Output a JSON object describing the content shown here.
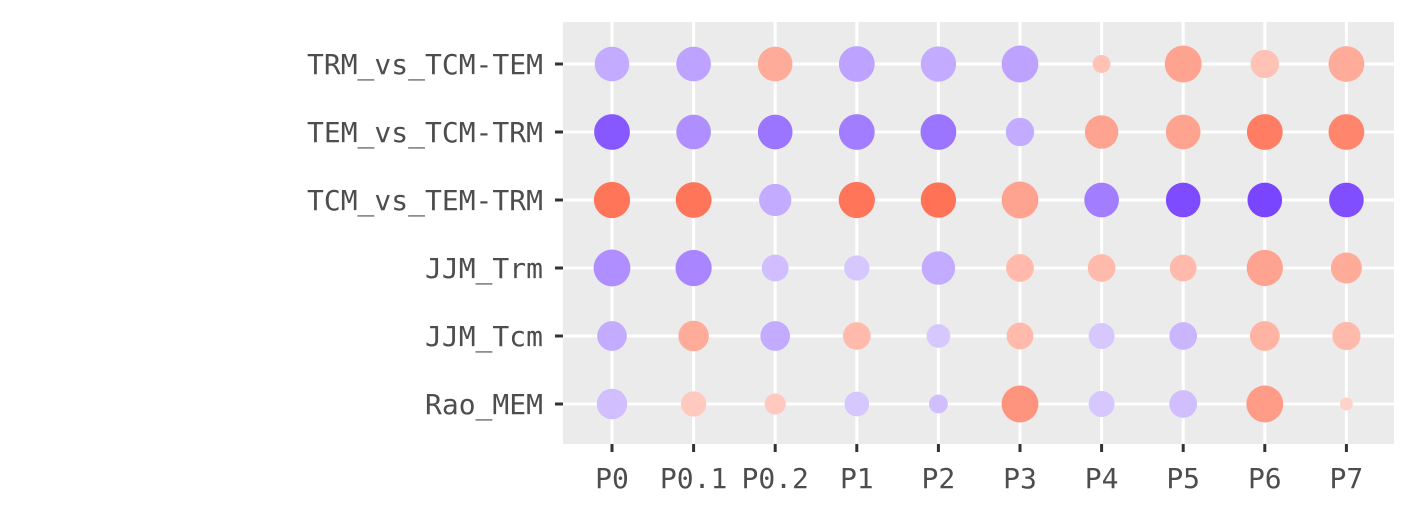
{
  "chart_data": {
    "type": "scatter",
    "title": "",
    "xlabel": "",
    "ylabel": "",
    "x_categories": [
      "P0",
      "P0.1",
      "P0.2",
      "P1",
      "P2",
      "P3",
      "P4",
      "P5",
      "P6",
      "P7"
    ],
    "y_categories": [
      "TRM_vs_TCM-TEM",
      "TEM_vs_TCM-TRM",
      "TCM_vs_TEM-TRM",
      "JJM_Trm",
      "JJM_Tcm",
      "Rao_MEM"
    ],
    "grid": true,
    "legend": "none",
    "colors": {
      "panel_background": "#ebebeb",
      "gridline": "#ffffff",
      "axis_tick": "#333333",
      "tick_label": "#4d4d4d",
      "low": "#7a45ff",
      "neutral": "#ffffff",
      "high": "#ff6647"
    },
    "points": [
      {
        "y": "TRM_vs_TCM-TEM",
        "x": "P0",
        "size": 0.75,
        "color": 0.45
      },
      {
        "y": "TRM_vs_TCM-TEM",
        "x": "P0.1",
        "size": 0.75,
        "color": 0.5
      },
      {
        "y": "TRM_vs_TCM-TEM",
        "x": "P0.2",
        "size": 0.75,
        "color": -0.55
      },
      {
        "y": "TRM_vs_TCM-TEM",
        "x": "P1",
        "size": 0.8,
        "color": 0.5
      },
      {
        "y": "TRM_vs_TCM-TEM",
        "x": "P2",
        "size": 0.78,
        "color": 0.45
      },
      {
        "y": "TRM_vs_TCM-TEM",
        "x": "P3",
        "size": 0.85,
        "color": 0.5
      },
      {
        "y": "TRM_vs_TCM-TEM",
        "x": "P4",
        "size": 0.2,
        "color": -0.4
      },
      {
        "y": "TRM_vs_TCM-TEM",
        "x": "P5",
        "size": 0.85,
        "color": -0.6
      },
      {
        "y": "TRM_vs_TCM-TEM",
        "x": "P6",
        "size": 0.5,
        "color": -0.4
      },
      {
        "y": "TRM_vs_TCM-TEM",
        "x": "P7",
        "size": 0.8,
        "color": -0.55
      },
      {
        "y": "TEM_vs_TCM-TRM",
        "x": "P0",
        "size": 0.8,
        "color": 0.9
      },
      {
        "y": "TEM_vs_TCM-TRM",
        "x": "P0.1",
        "size": 0.75,
        "color": 0.6
      },
      {
        "y": "TEM_vs_TCM-TRM",
        "x": "P0.2",
        "size": 0.75,
        "color": 0.75
      },
      {
        "y": "TEM_vs_TCM-TRM",
        "x": "P1",
        "size": 0.8,
        "color": 0.7
      },
      {
        "y": "TEM_vs_TCM-TRM",
        "x": "P2",
        "size": 0.8,
        "color": 0.75
      },
      {
        "y": "TEM_vs_TCM-TRM",
        "x": "P3",
        "size": 0.5,
        "color": 0.45
      },
      {
        "y": "TEM_vs_TCM-TRM",
        "x": "P4",
        "size": 0.7,
        "color": -0.6
      },
      {
        "y": "TEM_vs_TCM-TRM",
        "x": "P5",
        "size": 0.75,
        "color": -0.6
      },
      {
        "y": "TEM_vs_TCM-TRM",
        "x": "P6",
        "size": 0.8,
        "color": -0.85
      },
      {
        "y": "TEM_vs_TCM-TRM",
        "x": "P7",
        "size": 0.8,
        "color": -0.8
      },
      {
        "y": "TCM_vs_TEM-TRM",
        "x": "P0",
        "size": 0.82,
        "color": -0.9
      },
      {
        "y": "TCM_vs_TEM-TRM",
        "x": "P0.1",
        "size": 0.8,
        "color": -0.9
      },
      {
        "y": "TCM_vs_TEM-TRM",
        "x": "P0.2",
        "size": 0.65,
        "color": 0.45
      },
      {
        "y": "TCM_vs_TEM-TRM",
        "x": "P1",
        "size": 0.82,
        "color": -0.9
      },
      {
        "y": "TCM_vs_TEM-TRM",
        "x": "P2",
        "size": 0.78,
        "color": -0.92
      },
      {
        "y": "TCM_vs_TEM-TRM",
        "x": "P3",
        "size": 0.85,
        "color": -0.6
      },
      {
        "y": "TCM_vs_TEM-TRM",
        "x": "P4",
        "size": 0.75,
        "color": 0.7
      },
      {
        "y": "TCM_vs_TEM-TRM",
        "x": "P5",
        "size": 0.75,
        "color": 0.97
      },
      {
        "y": "TCM_vs_TEM-TRM",
        "x": "P6",
        "size": 0.75,
        "color": 1.0
      },
      {
        "y": "TCM_vs_TEM-TRM",
        "x": "P7",
        "size": 0.75,
        "color": 0.95
      },
      {
        "y": "JJM_Trm",
        "x": "P0",
        "size": 0.85,
        "color": 0.6
      },
      {
        "y": "JJM_Trm",
        "x": "P0.1",
        "size": 0.82,
        "color": 0.65
      },
      {
        "y": "JJM_Trm",
        "x": "P0.2",
        "size": 0.45,
        "color": 0.35
      },
      {
        "y": "JJM_Trm",
        "x": "P1",
        "size": 0.4,
        "color": 0.3
      },
      {
        "y": "JJM_Trm",
        "x": "P2",
        "size": 0.7,
        "color": 0.45
      },
      {
        "y": "JJM_Trm",
        "x": "P3",
        "size": 0.48,
        "color": -0.45
      },
      {
        "y": "JJM_Trm",
        "x": "P4",
        "size": 0.48,
        "color": -0.45
      },
      {
        "y": "JJM_Trm",
        "x": "P5",
        "size": 0.45,
        "color": -0.45
      },
      {
        "y": "JJM_Trm",
        "x": "P6",
        "size": 0.82,
        "color": -0.6
      },
      {
        "y": "JJM_Trm",
        "x": "P7",
        "size": 0.6,
        "color": -0.55
      },
      {
        "y": "JJM_Tcm",
        "x": "P0",
        "size": 0.55,
        "color": 0.45
      },
      {
        "y": "JJM_Tcm",
        "x": "P0.1",
        "size": 0.58,
        "color": -0.55
      },
      {
        "y": "JJM_Tcm",
        "x": "P0.2",
        "size": 0.55,
        "color": 0.45
      },
      {
        "y": "JJM_Tcm",
        "x": "P1",
        "size": 0.48,
        "color": -0.45
      },
      {
        "y": "JJM_Tcm",
        "x": "P2",
        "size": 0.35,
        "color": 0.3
      },
      {
        "y": "JJM_Tcm",
        "x": "P3",
        "size": 0.45,
        "color": -0.45
      },
      {
        "y": "JJM_Tcm",
        "x": "P4",
        "size": 0.42,
        "color": 0.3
      },
      {
        "y": "JJM_Tcm",
        "x": "P5",
        "size": 0.48,
        "color": 0.4
      },
      {
        "y": "JJM_Tcm",
        "x": "P6",
        "size": 0.55,
        "color": -0.5
      },
      {
        "y": "JJM_Tcm",
        "x": "P7",
        "size": 0.5,
        "color": -0.45
      },
      {
        "y": "Rao_MEM",
        "x": "P0",
        "size": 0.58,
        "color": 0.35
      },
      {
        "y": "Rao_MEM",
        "x": "P0.1",
        "size": 0.4,
        "color": -0.35
      },
      {
        "y": "Rao_MEM",
        "x": "P0.2",
        "size": 0.28,
        "color": -0.35
      },
      {
        "y": "Rao_MEM",
        "x": "P1",
        "size": 0.38,
        "color": 0.3
      },
      {
        "y": "Rao_MEM",
        "x": "P2",
        "size": 0.22,
        "color": 0.35
      },
      {
        "y": "Rao_MEM",
        "x": "P3",
        "size": 0.85,
        "color": -0.7
      },
      {
        "y": "Rao_MEM",
        "x": "P4",
        "size": 0.42,
        "color": 0.3
      },
      {
        "y": "Rao_MEM",
        "x": "P5",
        "size": 0.48,
        "color": 0.35
      },
      {
        "y": "Rao_MEM",
        "x": "P6",
        "size": 0.85,
        "color": -0.65
      },
      {
        "y": "Rao_MEM",
        "x": "P7",
        "size": 0.1,
        "color": -0.3
      }
    ]
  }
}
